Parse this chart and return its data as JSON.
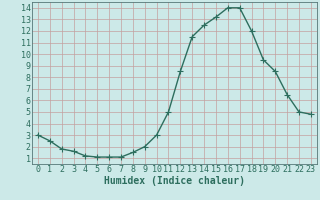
{
  "x": [
    0,
    1,
    2,
    3,
    4,
    5,
    6,
    7,
    8,
    9,
    10,
    11,
    12,
    13,
    14,
    15,
    16,
    17,
    18,
    19,
    20,
    21,
    22,
    23
  ],
  "y": [
    3.0,
    2.5,
    1.8,
    1.6,
    1.2,
    1.1,
    1.1,
    1.1,
    1.5,
    2.0,
    3.0,
    5.0,
    8.5,
    11.5,
    12.5,
    13.2,
    14.0,
    14.0,
    12.0,
    9.5,
    8.5,
    6.5,
    5.0,
    4.8
  ],
  "line_color": "#2d6e5e",
  "marker": "+",
  "marker_size": 4,
  "marker_linewidth": 0.8,
  "line_width": 1.0,
  "bg_color": "#cce9e8",
  "grid_color": "#c4a0a0",
  "xlabel": "Humidex (Indice chaleur)",
  "xlabel_fontsize": 7,
  "xlim": [
    -0.5,
    23.5
  ],
  "ylim": [
    0.5,
    14.5
  ],
  "yticks": [
    1,
    2,
    3,
    4,
    5,
    6,
    7,
    8,
    9,
    10,
    11,
    12,
    13,
    14
  ],
  "xticks": [
    0,
    1,
    2,
    3,
    4,
    5,
    6,
    7,
    8,
    9,
    10,
    11,
    12,
    13,
    14,
    15,
    16,
    17,
    18,
    19,
    20,
    21,
    22,
    23
  ],
  "tick_fontsize": 6,
  "tick_color": "#2d6e5e"
}
